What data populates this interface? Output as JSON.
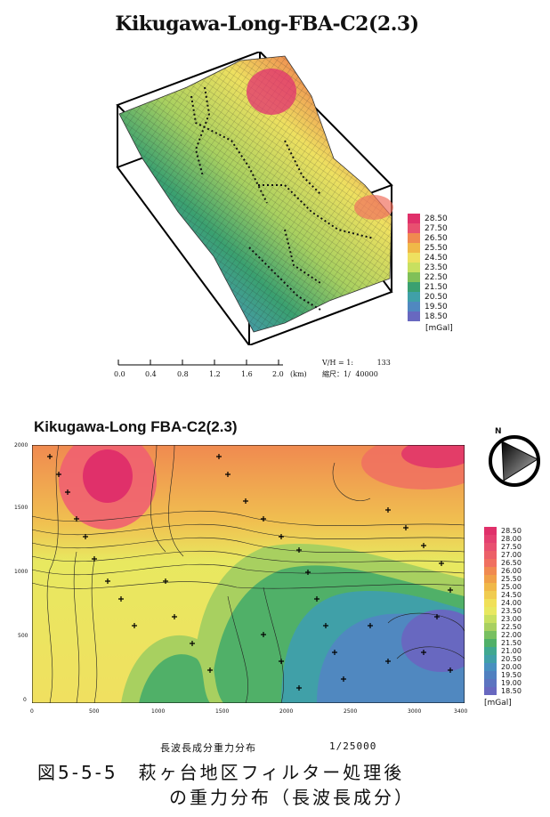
{
  "top_panel": {
    "title": "Kikugawa-Long-FBA-C2(2.3)",
    "legend_values": [
      "28.50",
      "27.50",
      "26.50",
      "25.50",
      "24.50",
      "23.50",
      "22.50",
      "21.50",
      "20.50",
      "19.50",
      "18.50"
    ],
    "unit": "[mGal]",
    "scale_ticks": [
      "0.0",
      "0.4",
      "0.8",
      "1.2",
      "1.6",
      "2.0"
    ],
    "scale_unit": "(km)",
    "vh_label": "V/H = 1:",
    "vh_value": "133",
    "scale_ratio_label": "縮尺：1/",
    "scale_ratio_value": "40000"
  },
  "bottom_panel": {
    "title": "Kikugawa-Long FBA-C2(2.3)",
    "legend_values": [
      "28.50",
      "28.00",
      "27.50",
      "27.00",
      "26.50",
      "26.00",
      "25.50",
      "25.00",
      "24.50",
      "24.00",
      "23.50",
      "23.00",
      "22.50",
      "22.00",
      "21.50",
      "21.00",
      "20.50",
      "20.00",
      "19.50",
      "19.00",
      "18.50"
    ],
    "unit": "[mGal]",
    "y_ticks": [
      "2000",
      "1500",
      "1000",
      "500",
      "0"
    ],
    "x_ticks": [
      "0",
      "500",
      "1000",
      "1500",
      "2000",
      "2500",
      "3000",
      "3400"
    ],
    "north_label": "N"
  },
  "caption_small": "長波長成分重力分布",
  "caption_scale": "1/25000",
  "figure_caption_line1": "図5-5-5　萩ヶ台地区フィルター処理後",
  "figure_caption_line2": "の重力分布（長波長成分）",
  "colors": {
    "high": "#e0306a",
    "mid_high": "#f0a030",
    "mid": "#e8e860",
    "mid_low": "#4aa860",
    "low": "#5878c8"
  }
}
